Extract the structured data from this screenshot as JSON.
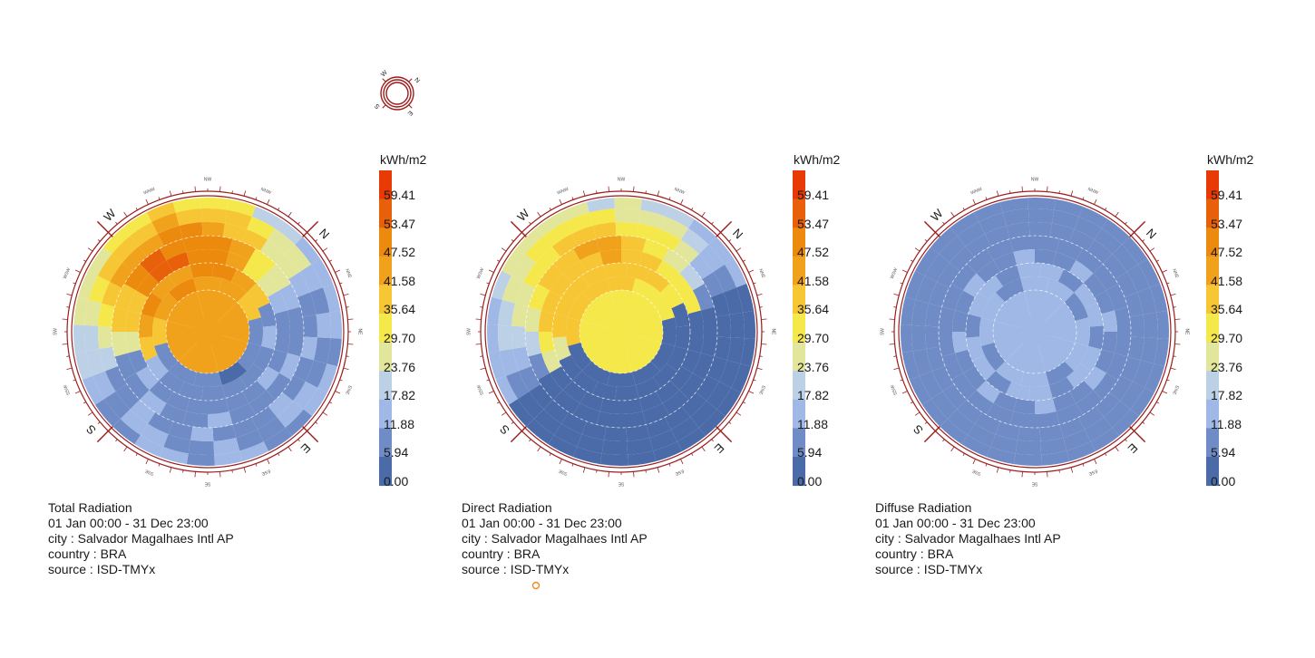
{
  "colors": {
    "ring": "#9b1c1c",
    "palette": [
      "#4a6aa8",
      "#6f8cc6",
      "#a0b8e6",
      "#bcd0e6",
      "#e2e69a",
      "#f5e84a",
      "#f6c634",
      "#f0a21c",
      "#ec8a0e",
      "#e9600a",
      "#e83a04"
    ]
  },
  "legend": {
    "title": "kWh/m2",
    "labels": [
      "59.41",
      "53.47",
      "47.52",
      "41.58",
      "35.64",
      "29.70",
      "23.76",
      "17.82",
      "11.88",
      "5.94",
      "0.00"
    ]
  },
  "compass": {
    "cardinals": {
      "n": "N",
      "e": "E",
      "s": "S",
      "w": "W"
    },
    "minor": [
      "NNE",
      "NE",
      "ENE",
      "ESE",
      "SE",
      "SSE",
      "SSW",
      "SW",
      "WSW",
      "WNW",
      "NW",
      "NNW"
    ]
  },
  "charts": [
    {
      "caption": [
        "Total Radiation",
        "01 Jan 00:00 - 31 Dec 23:00",
        "city : Salvador Magalhaes Intl AP",
        "country : BRA",
        "source : ISD-TMYx"
      ]
    },
    {
      "caption": [
        "Direct Radiation",
        "01 Jan 00:00 - 31 Dec 23:00",
        "city : Salvador Magalhaes Intl AP",
        "country : BRA",
        "source : ISD-TMYx"
      ]
    },
    {
      "caption": [
        "Diffuse Radiation",
        "01 Jan 00:00 - 31 Dec 23:00",
        "city : Salvador Magalhaes Intl AP",
        "country : BRA",
        "source : ISD-TMYx"
      ]
    }
  ],
  "chart_data": {
    "type": "heatmap",
    "layout": "radiation dome (sky patches by azimuth and altitude)",
    "unit": "kWh/m2",
    "scale": {
      "min": 0.0,
      "max": 59.41,
      "steps": [
        0.0,
        5.94,
        11.88,
        17.82,
        23.76,
        29.7,
        35.64,
        41.58,
        47.52,
        53.47,
        59.41
      ]
    },
    "series": [
      {
        "name": "Total Radiation",
        "peak_direction": "WNW",
        "center_value": 45.0
      },
      {
        "name": "Direct Radiation",
        "peak_direction": "WNW",
        "center_value": 32.0
      },
      {
        "name": "Diffuse Radiation",
        "peak_direction": "none",
        "center_value": 9.0
      }
    ]
  }
}
